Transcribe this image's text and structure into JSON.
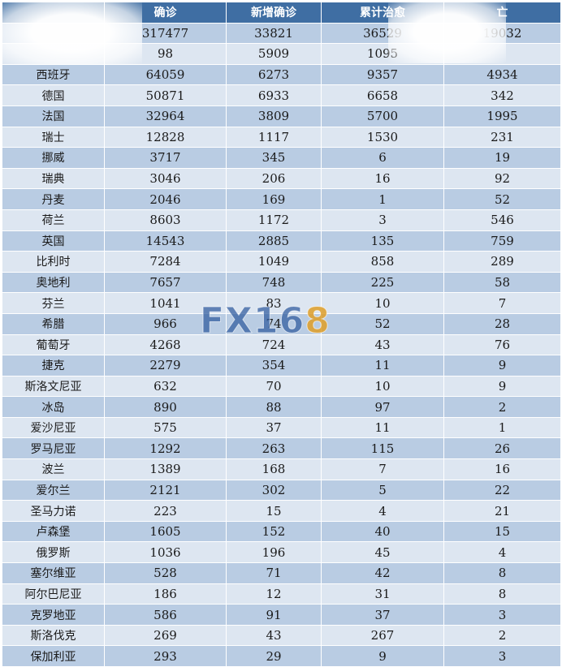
{
  "headers": [
    "",
    "确诊",
    "新增确诊",
    "累计治愈",
    "亡"
  ],
  "rows": [
    [
      "",
      "317477",
      "33821",
      "36529",
      "19032"
    ],
    [
      "",
      "98",
      "5909",
      "1095",
      ""
    ],
    [
      "西班牙",
      "64059",
      "6273",
      "9357",
      "4934"
    ],
    [
      "德国",
      "50871",
      "6933",
      "6658",
      "342"
    ],
    [
      "法国",
      "32964",
      "3809",
      "5700",
      "1995"
    ],
    [
      "瑞士",
      "12828",
      "1117",
      "1530",
      "231"
    ],
    [
      "挪威",
      "3717",
      "345",
      "6",
      "19"
    ],
    [
      "瑞典",
      "3046",
      "206",
      "16",
      "92"
    ],
    [
      "丹麦",
      "2046",
      "169",
      "1",
      "52"
    ],
    [
      "荷兰",
      "8603",
      "1172",
      "3",
      "546"
    ],
    [
      "英国",
      "14543",
      "2885",
      "135",
      "759"
    ],
    [
      "比利时",
      "7284",
      "1049",
      "858",
      "289"
    ],
    [
      "奥地利",
      "7657",
      "748",
      "225",
      "58"
    ],
    [
      "芬兰",
      "1041",
      "83",
      "10",
      "7"
    ],
    [
      "希腊",
      "966",
      "74",
      "52",
      "28"
    ],
    [
      "葡萄牙",
      "4268",
      "724",
      "43",
      "76"
    ],
    [
      "捷克",
      "2279",
      "354",
      "11",
      "9"
    ],
    [
      "斯洛文尼亚",
      "632",
      "70",
      "10",
      "9"
    ],
    [
      "冰岛",
      "890",
      "88",
      "97",
      "2"
    ],
    [
      "爱沙尼亚",
      "575",
      "37",
      "11",
      "1"
    ],
    [
      "罗马尼亚",
      "1292",
      "263",
      "115",
      "26"
    ],
    [
      "波兰",
      "1389",
      "168",
      "7",
      "16"
    ],
    [
      "爱尔兰",
      "2121",
      "302",
      "5",
      "22"
    ],
    [
      "圣马力诺",
      "223",
      "15",
      "4",
      "21"
    ],
    [
      "卢森堡",
      "1605",
      "152",
      "40",
      "15"
    ],
    [
      "俄罗斯",
      "1036",
      "196",
      "45",
      "4"
    ],
    [
      "塞尔维亚",
      "528",
      "71",
      "42",
      "8"
    ],
    [
      "阿尔巴尼亚",
      "186",
      "12",
      "31",
      "8"
    ],
    [
      "克罗地亚",
      "586",
      "91",
      "37",
      "3"
    ],
    [
      "斯洛伐克",
      "269",
      "43",
      "267",
      "2"
    ],
    [
      "保加利亚",
      "293",
      "29",
      "9",
      "3"
    ]
  ],
  "watermark": {
    "main": "FX16",
    "accent": "8"
  }
}
